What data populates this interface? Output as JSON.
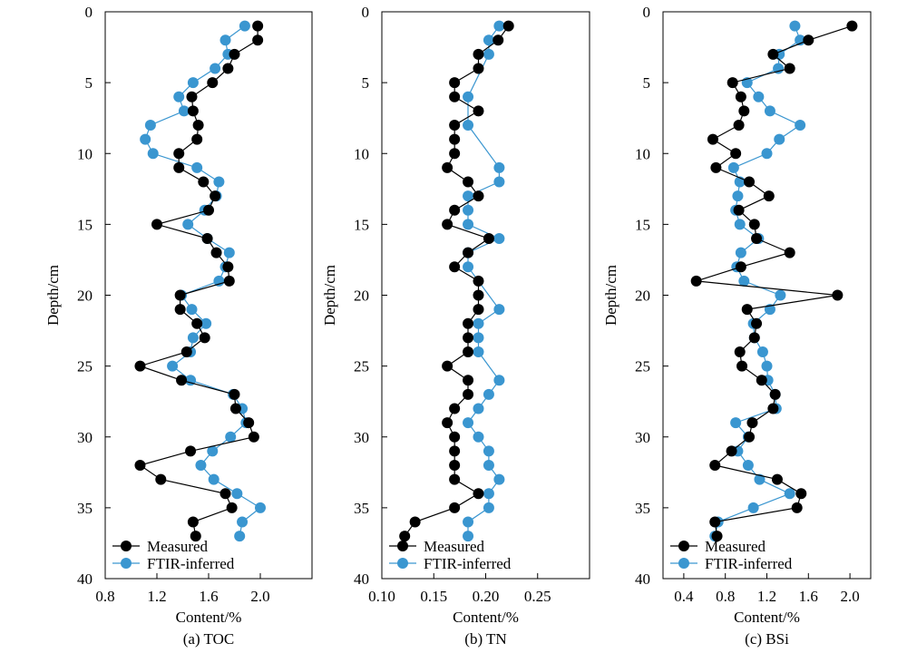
{
  "chart_data": [
    {
      "type": "line",
      "caption": "(a) TOC",
      "xlabel": "Content/%",
      "ylabel": "Depth/cm",
      "xlim": [
        0.8,
        2.4
      ],
      "ylim": [
        0,
        40
      ],
      "y_inverted": true,
      "xticks": [
        "0.8",
        "1.2",
        "1.6",
        "2.0"
      ],
      "yticks": [
        "0",
        "5",
        "10",
        "15",
        "20",
        "25",
        "30",
        "35",
        "40"
      ],
      "legend_position": "bottom-left",
      "series": [
        {
          "name": "Measured",
          "color": "#000000",
          "x": [
            1.98,
            1.98,
            1.8,
            1.75,
            1.63,
            1.47,
            1.48,
            1.52,
            1.51,
            1.37,
            1.37,
            1.56,
            1.65,
            1.6,
            1.2,
            1.59,
            1.66,
            1.75,
            1.76,
            1.38,
            1.38,
            1.51,
            1.57,
            1.43,
            1.07,
            1.39,
            1.8,
            1.81,
            1.91,
            1.95,
            1.46,
            1.07,
            1.23,
            1.73,
            1.78,
            1.48,
            1.5
          ],
          "y": [
            1,
            2,
            3,
            4,
            5,
            6,
            7,
            8,
            9,
            10,
            11,
            12,
            13,
            14,
            15,
            16,
            17,
            18,
            19,
            20,
            21,
            22,
            23,
            24,
            25,
            26,
            27,
            28,
            29,
            30,
            31,
            32,
            33,
            34,
            35,
            36,
            37
          ]
        },
        {
          "name": "FTIR-inferred",
          "color": "#3a96d0",
          "x": [
            1.88,
            1.73,
            1.75,
            1.65,
            1.48,
            1.37,
            1.41,
            1.15,
            1.11,
            1.17,
            1.51,
            1.68,
            1.66,
            1.57,
            1.44,
            1.59,
            1.76,
            1.73,
            1.68,
            1.39,
            1.47,
            1.58,
            1.48,
            1.46,
            1.32,
            1.46,
            1.79,
            1.86,
            1.89,
            1.77,
            1.63,
            1.54,
            1.64,
            1.82,
            2.0,
            1.86,
            1.84
          ],
          "y": [
            1,
            2,
            3,
            4,
            5,
            6,
            7,
            8,
            9,
            10,
            11,
            12,
            13,
            14,
            15,
            16,
            17,
            18,
            19,
            20,
            21,
            22,
            23,
            24,
            25,
            26,
            27,
            28,
            29,
            30,
            31,
            32,
            33,
            34,
            35,
            36,
            37
          ]
        }
      ]
    },
    {
      "type": "line",
      "caption": "(b) TN",
      "xlabel": "Content/%",
      "ylabel": "Depth/cm",
      "xlim": [
        0.1,
        0.3
      ],
      "ylim": [
        0,
        40
      ],
      "y_inverted": true,
      "xticks": [
        "0.10",
        "0.15",
        "0.20",
        "0.25"
      ],
      "yticks": [
        "0",
        "5",
        "10",
        "15",
        "20",
        "25",
        "30",
        "35",
        "40"
      ],
      "legend_position": "bottom-left",
      "series": [
        {
          "name": "Measured",
          "color": "#000000",
          "x": [
            0.222,
            0.212,
            0.193,
            0.193,
            0.17,
            0.17,
            0.193,
            0.17,
            0.17,
            0.17,
            0.163,
            0.183,
            0.193,
            0.17,
            0.163,
            0.203,
            0.183,
            0.17,
            0.193,
            0.193,
            0.193,
            0.183,
            0.183,
            0.183,
            0.163,
            0.183,
            0.183,
            0.17,
            0.163,
            0.17,
            0.17,
            0.17,
            0.17,
            0.193,
            0.17,
            0.132,
            0.122
          ],
          "y": [
            1,
            2,
            3,
            4,
            5,
            6,
            7,
            8,
            9,
            10,
            11,
            12,
            13,
            14,
            15,
            16,
            17,
            18,
            19,
            20,
            21,
            22,
            23,
            24,
            25,
            26,
            27,
            28,
            29,
            30,
            31,
            32,
            33,
            34,
            35,
            36,
            37
          ]
        },
        {
          "name": "FTIR-inferred",
          "color": "#3a96d0",
          "x": [
            0.213,
            0.203,
            0.203,
            null,
            null,
            0.183,
            null,
            0.183,
            null,
            null,
            0.213,
            0.213,
            0.183,
            0.183,
            0.183,
            0.213,
            0.183,
            0.183,
            null,
            null,
            0.213,
            0.193,
            0.193,
            0.193,
            null,
            0.213,
            0.203,
            0.193,
            0.183,
            0.193,
            0.203,
            0.203,
            0.213,
            0.203,
            0.203,
            0.183,
            0.183
          ],
          "y": [
            1,
            2,
            3,
            4,
            5,
            6,
            7,
            8,
            9,
            10,
            11,
            12,
            13,
            14,
            15,
            16,
            17,
            18,
            19,
            20,
            21,
            22,
            23,
            24,
            25,
            26,
            27,
            28,
            29,
            30,
            31,
            32,
            33,
            34,
            35,
            36,
            37
          ]
        }
      ]
    },
    {
      "type": "line",
      "caption": "(c) BSi",
      "xlabel": "Content/%",
      "ylabel": "Depth/cm",
      "xlim": [
        0.2,
        2.2
      ],
      "ylim": [
        0,
        40
      ],
      "y_inverted": true,
      "xticks": [
        "0.4",
        "0.8",
        "1.2",
        "1.6",
        "2.0"
      ],
      "yticks": [
        "0",
        "5",
        "10",
        "15",
        "20",
        "25",
        "30",
        "35",
        "40"
      ],
      "legend_position": "bottom-left",
      "series": [
        {
          "name": "Measured",
          "color": "#000000",
          "x": [
            2.02,
            1.6,
            1.26,
            1.42,
            0.87,
            0.95,
            0.98,
            0.93,
            0.68,
            0.9,
            0.71,
            1.03,
            1.22,
            0.93,
            1.08,
            1.1,
            1.42,
            0.95,
            0.52,
            1.88,
            1.01,
            1.1,
            1.08,
            0.94,
            0.96,
            1.15,
            1.28,
            1.26,
            1.06,
            1.03,
            0.86,
            0.7,
            1.3,
            1.53,
            1.49,
            0.7,
            0.72
          ],
          "y": [
            1,
            2,
            3,
            4,
            5,
            6,
            7,
            8,
            9,
            10,
            11,
            12,
            13,
            14,
            15,
            16,
            17,
            18,
            19,
            20,
            21,
            22,
            23,
            24,
            25,
            26,
            27,
            28,
            29,
            30,
            31,
            32,
            33,
            34,
            35,
            36,
            37
          ]
        },
        {
          "name": "FTIR-inferred",
          "color": "#3a96d0",
          "x": [
            1.47,
            1.52,
            1.32,
            1.31,
            1.01,
            1.12,
            1.23,
            1.52,
            1.32,
            1.2,
            0.88,
            0.94,
            0.92,
            0.9,
            0.94,
            1.12,
            0.95,
            0.91,
            0.98,
            1.33,
            1.23,
            1.07,
            1.08,
            1.16,
            1.2,
            1.21,
            1.28,
            1.29,
            0.9,
            1.02,
            0.92,
            1.02,
            1.13,
            1.42,
            1.07,
            0.73,
            0.7
          ],
          "y": [
            1,
            2,
            3,
            4,
            5,
            6,
            7,
            8,
            9,
            10,
            11,
            12,
            13,
            14,
            15,
            16,
            17,
            18,
            19,
            20,
            21,
            22,
            23,
            24,
            25,
            26,
            27,
            28,
            29,
            30,
            31,
            32,
            33,
            34,
            35,
            36,
            37
          ]
        }
      ]
    }
  ]
}
